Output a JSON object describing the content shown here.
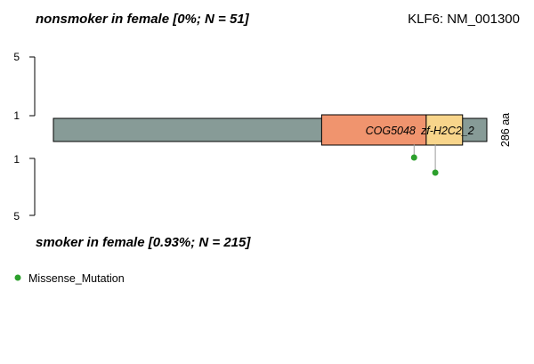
{
  "gene_title": "KLF6: NM_001300",
  "top_group_title": "nonsmoker in female [0%; N = 51]",
  "bottom_group_title": "smoker in female [0.93%; N = 215]",
  "protein_length_label": "286 aa",
  "legend": {
    "items": [
      {
        "label": "Missense_Mutation",
        "color": "#2ca02c"
      }
    ]
  },
  "chart_data": {
    "type": "lollipop",
    "protein_length": 286,
    "backbone_color": "#879b97",
    "domains": [
      {
        "name": "COG5048",
        "start": 177,
        "end": 246,
        "color": "#f0946e"
      },
      {
        "name": "zf-H2C2_2",
        "start": 246,
        "end": 270,
        "color": "#f8d58b"
      }
    ],
    "top_axis": {
      "ticks": [
        "1",
        "5"
      ],
      "ylim": [
        1,
        5
      ]
    },
    "bottom_axis": {
      "ticks": [
        "1",
        "5"
      ],
      "ylim": [
        1,
        5
      ]
    },
    "top_mutations": [],
    "bottom_mutations": [
      {
        "position": 238,
        "count": 1,
        "type": "Missense_Mutation",
        "color": "#2ca02c"
      },
      {
        "position": 252,
        "count": 1,
        "type": "Missense_Mutation",
        "color": "#2ca02c"
      }
    ]
  }
}
